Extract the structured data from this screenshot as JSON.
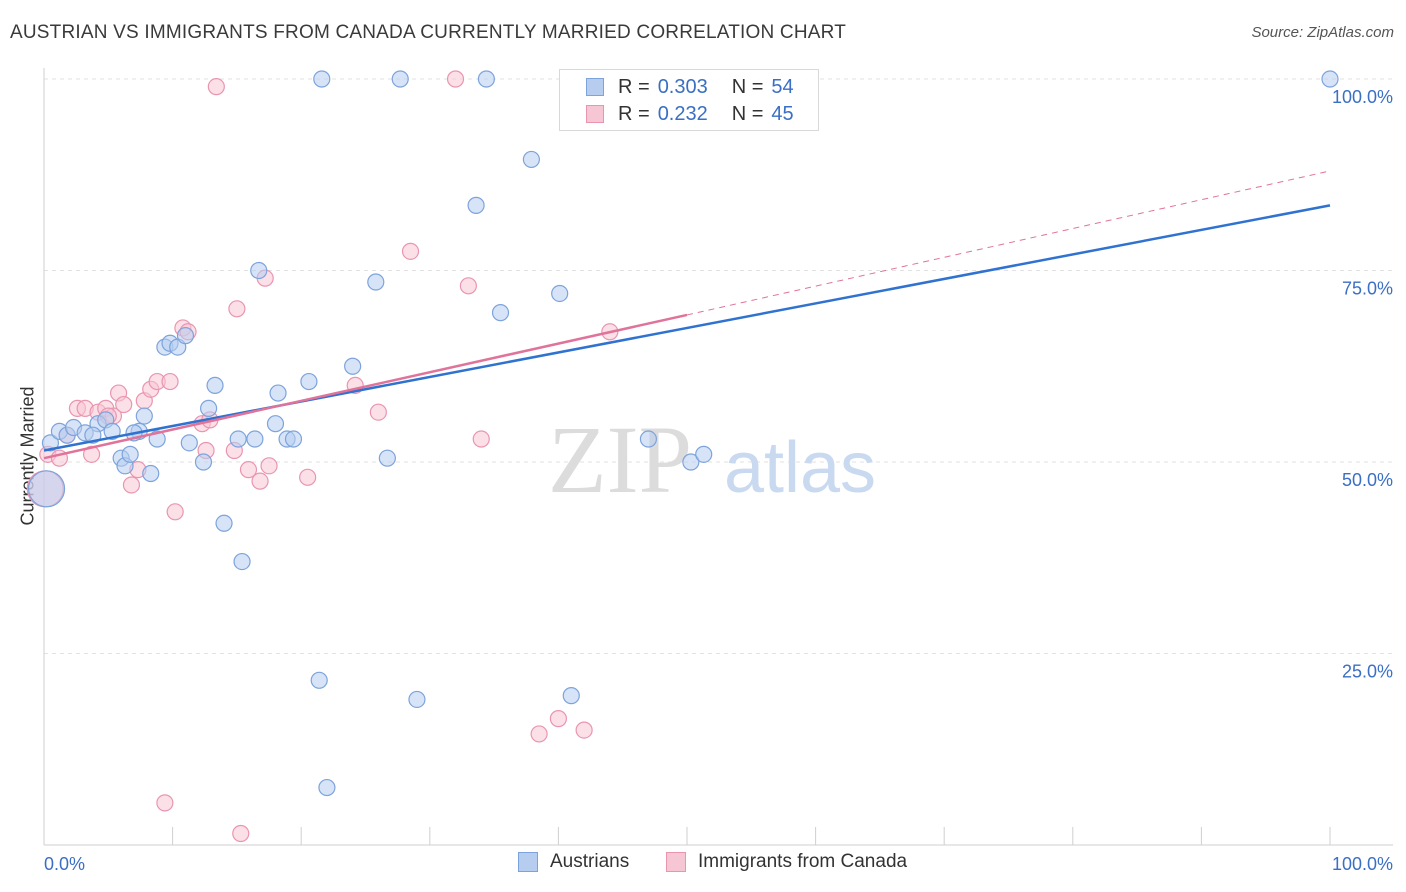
{
  "title": "AUSTRIAN VS IMMIGRANTS FROM CANADA CURRENTLY MARRIED CORRELATION CHART",
  "source": "Source: ZipAtlas.com",
  "watermark": {
    "part1": "ZIP",
    "part2": "atlas"
  },
  "legend": {
    "rows": [
      {
        "r_label": "R =",
        "r_value": "0.303",
        "n_label": "N =",
        "n_value": "54"
      },
      {
        "r_label": "R =",
        "r_value": "0.232",
        "n_label": "N =",
        "n_value": "45"
      }
    ]
  },
  "colors": {
    "blue_fill": "#b7cdf0",
    "blue_stroke": "#7da3dc",
    "blue_line": "#2f72d0",
    "pink_fill": "#f7c6d5",
    "pink_stroke": "#ea95b0",
    "pink_line": "#e0739a",
    "tick_label": "#3a6fc4",
    "grid": "#e2e2e2"
  },
  "chart_data": {
    "type": "scatter",
    "title": "AUSTRIAN VS IMMIGRANTS FROM CANADA CURRENTLY MARRIED CORRELATION CHART",
    "xlabel": "",
    "ylabel": "Currently Married",
    "xlim": [
      0,
      100
    ],
    "ylim": [
      0,
      100
    ],
    "x_tick_labels": [
      "0.0%",
      "100.0%"
    ],
    "y_tick_labels": [
      "25.0%",
      "50.0%",
      "75.0%",
      "100.0%"
    ],
    "y_ticks": [
      25,
      50,
      75,
      100
    ],
    "grid": true,
    "legend_position": "top-center",
    "series": [
      {
        "name": "Austrians",
        "r": 0.303,
        "n": 54,
        "color": "#b7cdf0",
        "trend": {
          "x0": 0,
          "y0": 51.5,
          "x1": 100,
          "y1": 83.5
        },
        "points": [
          [
            0.5,
            52.5
          ],
          [
            1.2,
            54
          ],
          [
            1.8,
            53.5
          ],
          [
            2.3,
            54.5
          ],
          [
            3.2,
            53.8
          ],
          [
            4.2,
            55
          ],
          [
            4.8,
            55.5
          ],
          [
            5.3,
            54
          ],
          [
            6.0,
            50.5
          ],
          [
            6.3,
            49.5
          ],
          [
            6.7,
            51
          ],
          [
            7.4,
            54
          ],
          [
            7.8,
            56
          ],
          [
            8.3,
            48.5
          ],
          [
            8.8,
            53
          ],
          [
            9.4,
            65
          ],
          [
            9.8,
            65.5
          ],
          [
            10.4,
            65
          ],
          [
            11.0,
            66.5
          ],
          [
            11.3,
            52.5
          ],
          [
            12.4,
            50
          ],
          [
            12.8,
            57
          ],
          [
            13.3,
            60
          ],
          [
            14.0,
            42
          ],
          [
            15.1,
            53
          ],
          [
            15.4,
            37
          ],
          [
            16.4,
            53
          ],
          [
            16.7,
            75
          ],
          [
            18.0,
            55
          ],
          [
            18.2,
            59
          ],
          [
            18.9,
            53
          ],
          [
            19.4,
            53
          ],
          [
            20.6,
            60.5
          ],
          [
            21.4,
            21.5
          ],
          [
            21.6,
            100
          ],
          [
            22.0,
            7.5
          ],
          [
            24.0,
            62.5
          ],
          [
            25.8,
            73.5
          ],
          [
            26.7,
            50.5
          ],
          [
            29.0,
            19
          ],
          [
            27.7,
            100
          ],
          [
            34.4,
            100
          ],
          [
            33.6,
            83.5
          ],
          [
            35.5,
            69.5
          ],
          [
            37.9,
            89.5
          ],
          [
            40.1,
            72
          ],
          [
            41.0,
            19.5
          ],
          [
            47.0,
            53
          ],
          [
            50.3,
            50
          ],
          [
            51.3,
            51
          ],
          [
            100,
            100
          ],
          [
            0.2,
            46.5
          ],
          [
            7.0,
            53.8
          ],
          [
            3.8,
            53.5
          ]
        ]
      },
      {
        "name": "Immigrants from Canada",
        "r": 0.232,
        "n": 45,
        "color": "#f7c6d5",
        "trend": {
          "x0": 0,
          "y0": 50.5,
          "x1": 50,
          "y1": 69.2,
          "dashed_to_x": 100,
          "dashed_to_y": 88
        },
        "points": [
          [
            0.3,
            51
          ],
          [
            1.2,
            50.5
          ],
          [
            1.8,
            53.5
          ],
          [
            2.6,
            57
          ],
          [
            3.2,
            57
          ],
          [
            3.7,
            51
          ],
          [
            4.2,
            56.5
          ],
          [
            4.8,
            57
          ],
          [
            5.4,
            56
          ],
          [
            5.8,
            59
          ],
          [
            6.2,
            57.5
          ],
          [
            6.8,
            47
          ],
          [
            7.3,
            49
          ],
          [
            7.8,
            58
          ],
          [
            8.3,
            59.5
          ],
          [
            8.8,
            60.5
          ],
          [
            9.4,
            5.5
          ],
          [
            9.8,
            60.5
          ],
          [
            10.2,
            43.5
          ],
          [
            10.8,
            67.5
          ],
          [
            11.2,
            67
          ],
          [
            12.3,
            55
          ],
          [
            12.6,
            51.5
          ],
          [
            12.9,
            55.5
          ],
          [
            13.4,
            99
          ],
          [
            14.8,
            51.5
          ],
          [
            15.0,
            70
          ],
          [
            15.3,
            1.5
          ],
          [
            15.9,
            49
          ],
          [
            16.8,
            47.5
          ],
          [
            17.2,
            74
          ],
          [
            17.5,
            49.5
          ],
          [
            20.5,
            48
          ],
          [
            24.2,
            60
          ],
          [
            26.0,
            56.5
          ],
          [
            28.5,
            77.5
          ],
          [
            32.0,
            100
          ],
          [
            33.0,
            73
          ],
          [
            34.0,
            53
          ],
          [
            44.0,
            67
          ],
          [
            40.0,
            16.5
          ],
          [
            42.0,
            15
          ],
          [
            38.5,
            14.5
          ],
          [
            0.1,
            46.5
          ],
          [
            5.0,
            56
          ]
        ]
      }
    ]
  },
  "x_axis": {
    "left_label": "0.0%",
    "right_label": "100.0%"
  },
  "bottom_legend": {
    "items": [
      {
        "label": "Austrians"
      },
      {
        "label": "Immigrants from Canada"
      }
    ]
  }
}
